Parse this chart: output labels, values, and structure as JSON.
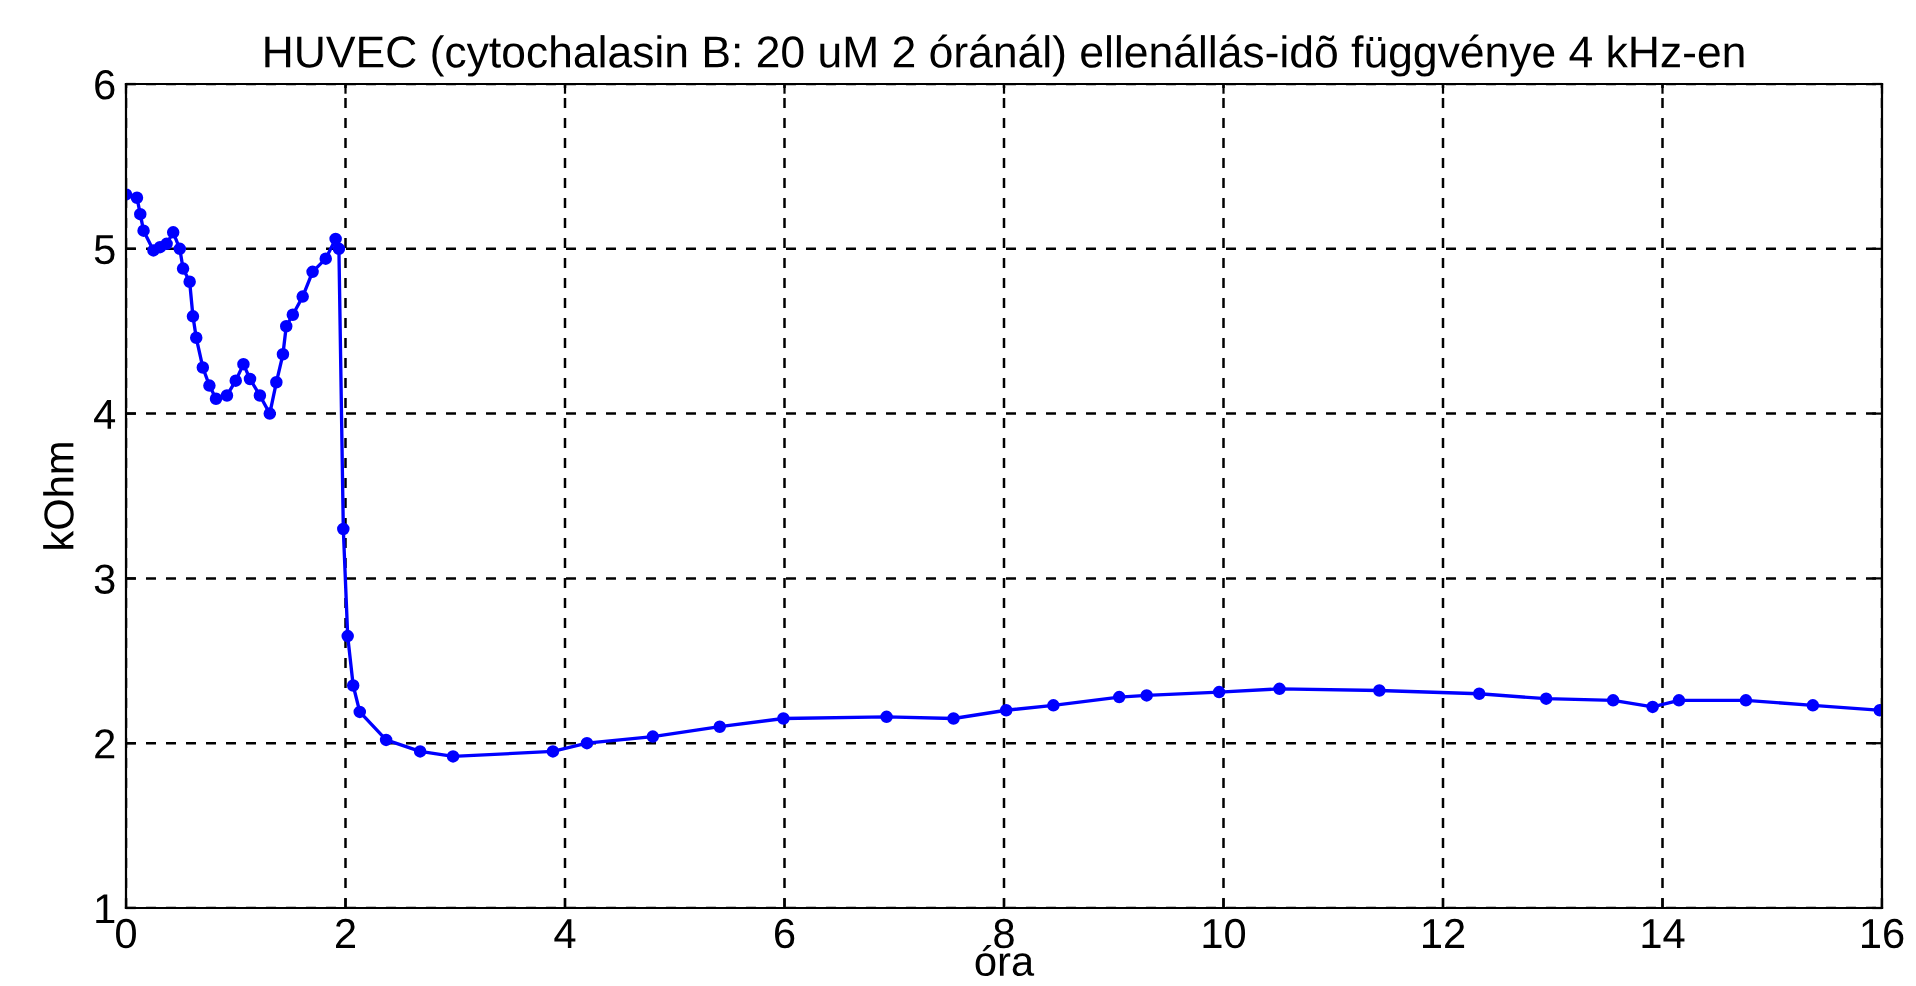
{
  "chart_data": {
    "type": "line",
    "title": "HUVEC (cytochalasin B: 20 uM 2 óránál) ellenállás-idõ függvénye 4 kHz-en",
    "xlabel": "óra",
    "ylabel": "kOhm",
    "xlim": [
      0,
      16
    ],
    "xticks": [
      0,
      2,
      4,
      6,
      8,
      10,
      12,
      14,
      16
    ],
    "ylim": [
      1,
      6
    ],
    "yticks": [
      1,
      2,
      3,
      4,
      5,
      6
    ],
    "grid": true,
    "marker": "circle",
    "line_style": "solid",
    "series": [
      {
        "color": "#0000ff",
        "x": [
          0.0,
          0.1,
          0.13,
          0.16,
          0.25,
          0.31,
          0.37,
          0.43,
          0.49,
          0.52,
          0.58,
          0.61,
          0.64,
          0.7,
          0.76,
          0.82,
          0.92,
          1.0,
          1.07,
          1.13,
          1.22,
          1.31,
          1.37,
          1.43,
          1.46,
          1.52,
          1.61,
          1.7,
          1.82,
          1.91,
          1.94,
          1.98,
          2.02,
          2.07,
          2.13,
          2.37,
          2.68,
          2.98,
          3.89,
          4.2,
          4.8,
          5.41,
          5.99,
          6.93,
          7.54,
          8.02,
          8.45,
          9.05,
          9.3,
          9.96,
          10.51,
          11.42,
          12.33,
          12.94,
          13.55,
          13.91,
          14.15,
          14.76,
          15.37,
          15.98
        ],
        "values": [
          5.33,
          5.31,
          5.21,
          5.11,
          4.99,
          5.01,
          5.03,
          5.1,
          5.0,
          4.88,
          4.8,
          4.59,
          4.46,
          4.28,
          4.17,
          4.09,
          4.11,
          4.2,
          4.3,
          4.21,
          4.11,
          4.0,
          4.19,
          4.36,
          4.53,
          4.6,
          4.71,
          4.86,
          4.94,
          5.06,
          5.0,
          3.3,
          2.65,
          2.35,
          2.19,
          2.02,
          1.95,
          1.92,
          1.95,
          2.0,
          2.04,
          2.1,
          2.15,
          2.16,
          2.15,
          2.2,
          2.23,
          2.28,
          2.29,
          2.31,
          2.33,
          2.32,
          2.3,
          2.27,
          2.26,
          2.22,
          2.26,
          2.26,
          2.23,
          2.2
        ]
      }
    ]
  }
}
